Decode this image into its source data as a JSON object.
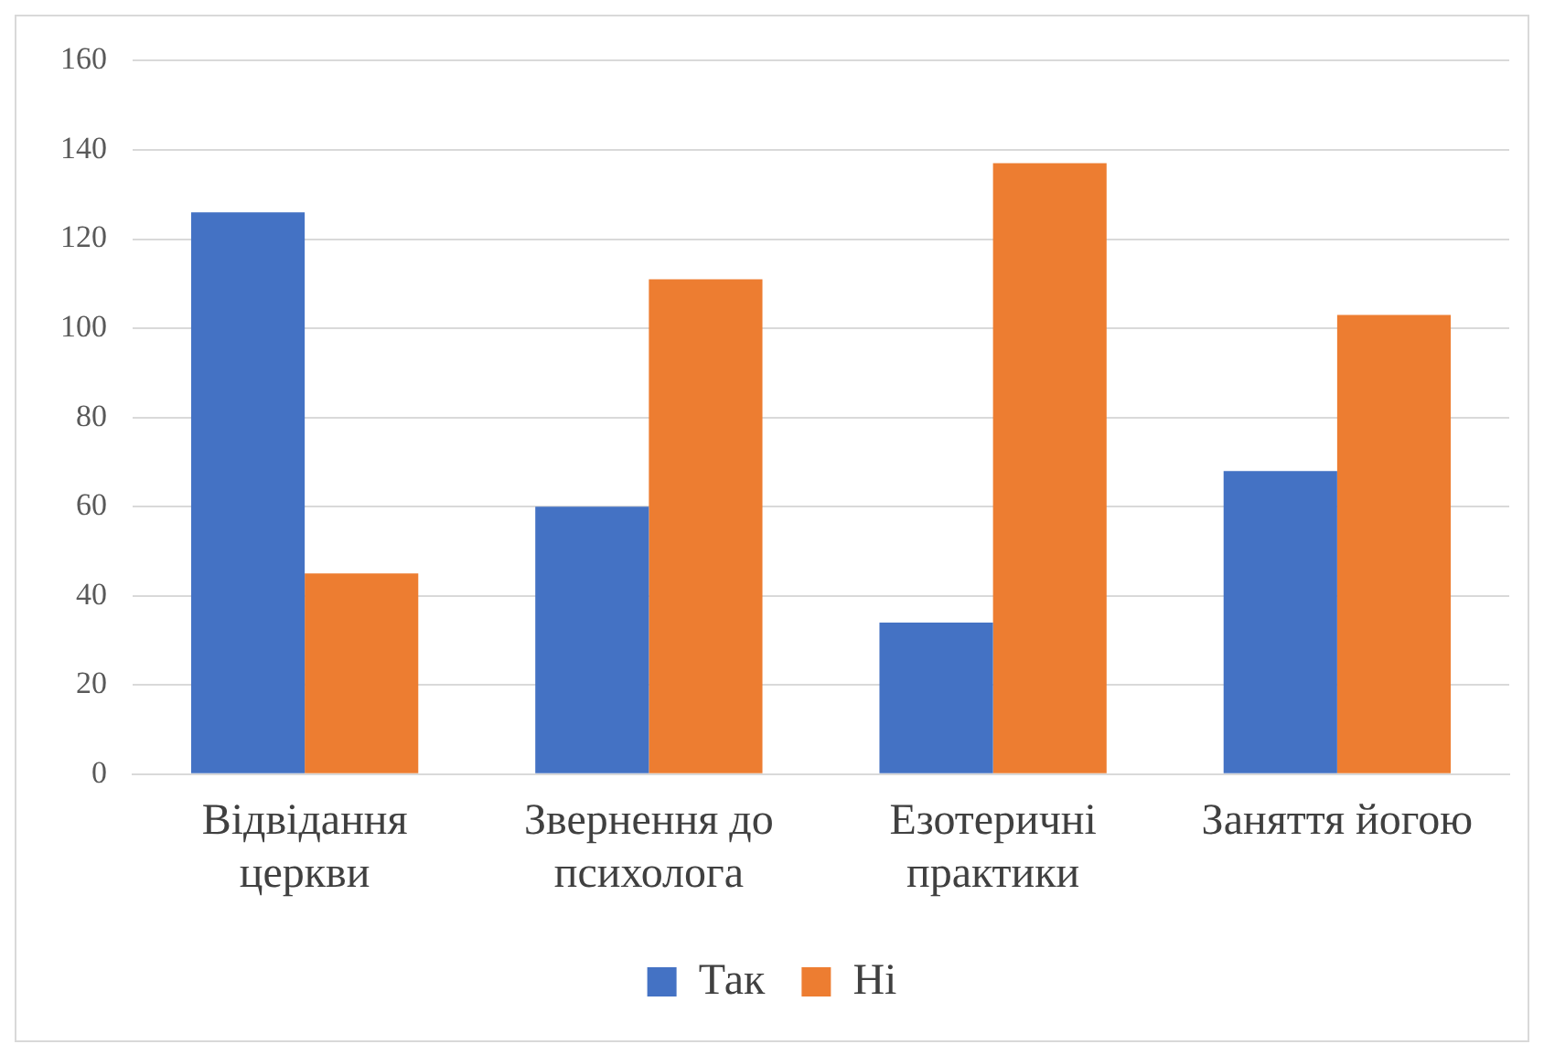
{
  "chart_data": {
    "type": "bar",
    "categories": [
      "Відвідання церкви",
      "Звернення до психолога",
      "Езотеричні практики",
      "Заняття йогою"
    ],
    "series": [
      {
        "name": "Так",
        "color": "#4472c4",
        "values": [
          126,
          60,
          34,
          68
        ]
      },
      {
        "name": "Ні",
        "color": "#ed7d31",
        "values": [
          45,
          111,
          137,
          103
        ]
      }
    ],
    "ylim": [
      0,
      160
    ],
    "yticks": [
      0,
      20,
      40,
      60,
      80,
      100,
      120,
      140,
      160
    ],
    "grid": "y",
    "legend": "bottom"
  }
}
